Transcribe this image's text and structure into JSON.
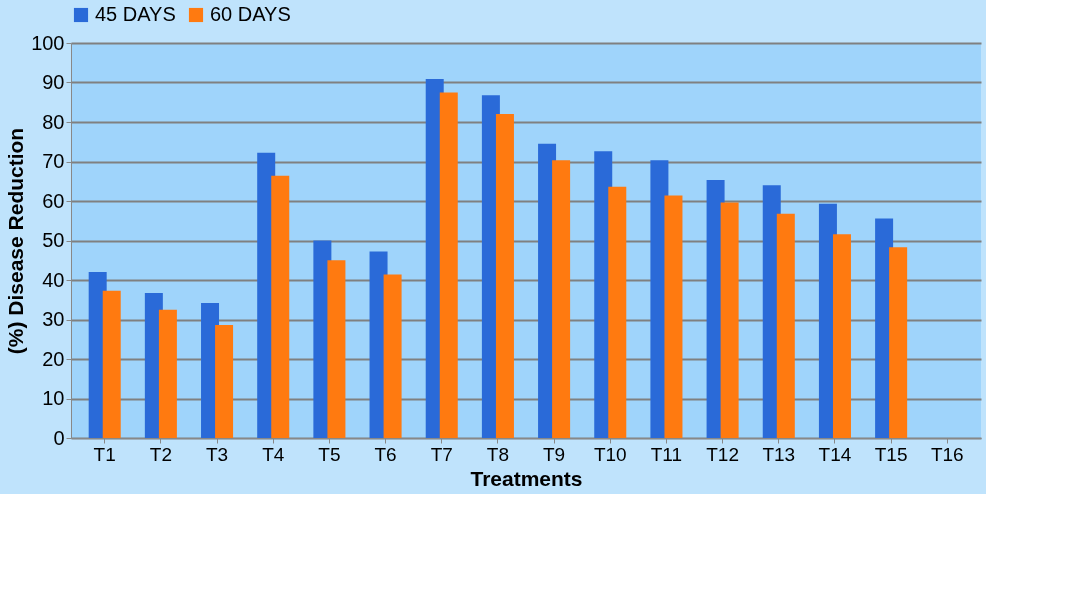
{
  "chart_data": {
    "type": "bar",
    "xlabel": "Treatments",
    "ylabel": "(%) Disease Reduction",
    "categories": [
      "T1",
      "T2",
      "T3",
      "T4",
      "T5",
      "T6",
      "T7",
      "T8",
      "T9",
      "T10",
      "T11",
      "T12",
      "T13",
      "T14",
      "T15",
      "T16"
    ],
    "series": [
      {
        "name": "45 DAYS",
        "color": "#2a6ad8",
        "values": [
          42,
          36.7,
          34.2,
          72.2,
          50,
          47.2,
          90.9,
          86.8,
          74.5,
          72.6,
          70.3,
          65.3,
          64,
          59.3,
          55.6,
          0
        ]
      },
      {
        "name": "60 DAYS",
        "color": "#ff7a10",
        "values": [
          37.3,
          32.5,
          28.6,
          66.4,
          45,
          41.4,
          87.5,
          82,
          70.3,
          63.6,
          61.4,
          59.6,
          56.8,
          51.6,
          48.3,
          0
        ]
      }
    ],
    "ylim": [
      0,
      100
    ],
    "yticks": [
      0,
      10,
      20,
      30,
      40,
      50,
      60,
      70,
      80,
      90,
      100
    ],
    "grid": "y",
    "legend": "top"
  }
}
